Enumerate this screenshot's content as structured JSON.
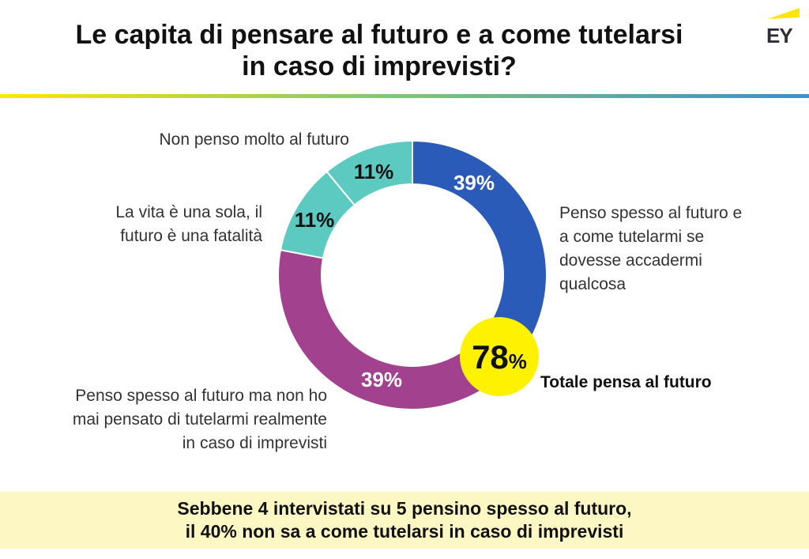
{
  "header": {
    "title_line1": "Le capita di pensare al futuro e a come tutelarsi",
    "title_line2": "in caso di imprevisti?",
    "logo_text": "EY"
  },
  "colors": {
    "blue": "#2b5bb9",
    "purple": "#a2418e",
    "teal": "#5ccac0",
    "yellow": "#fff200",
    "rule_start": "#ffe600",
    "rule_mid": "#7cc576",
    "rule_end": "#3a8fd1",
    "footer_bg": "#fdf7c3"
  },
  "chart_data": {
    "type": "pie",
    "subtype": "donut",
    "slices": [
      {
        "label_lines": [
          "Penso spesso al futuro e",
          "a come tutelarmi se",
          "dovesse accadermi",
          "qualcosa"
        ],
        "value": 39,
        "display": "39%",
        "color": "#2b5bb9"
      },
      {
        "label_lines": [
          "Penso spesso al futuro ma non ho",
          "mai pensato di tutelarmi realmente",
          "in caso di imprevisti"
        ],
        "value": 39,
        "display": "39%",
        "color": "#a2418e"
      },
      {
        "label_lines": [
          "La vita è una sola, il",
          "futuro è una fatalità"
        ],
        "value": 11,
        "display": "11%",
        "color": "#5ccac0"
      },
      {
        "label_lines": [
          "Non penso molto al futuro"
        ],
        "value": 11,
        "display": "11%",
        "color": "#5ccac0"
      }
    ],
    "total": {
      "number": "78",
      "unit": "%",
      "label": "Totale pensa al futuro",
      "value": 78
    }
  },
  "footer": {
    "line1": "Sebbene 4 intervistati su 5 pensino spesso al futuro,",
    "line2": "il 40% non sa a come tutelarsi in caso di imprevisti"
  }
}
